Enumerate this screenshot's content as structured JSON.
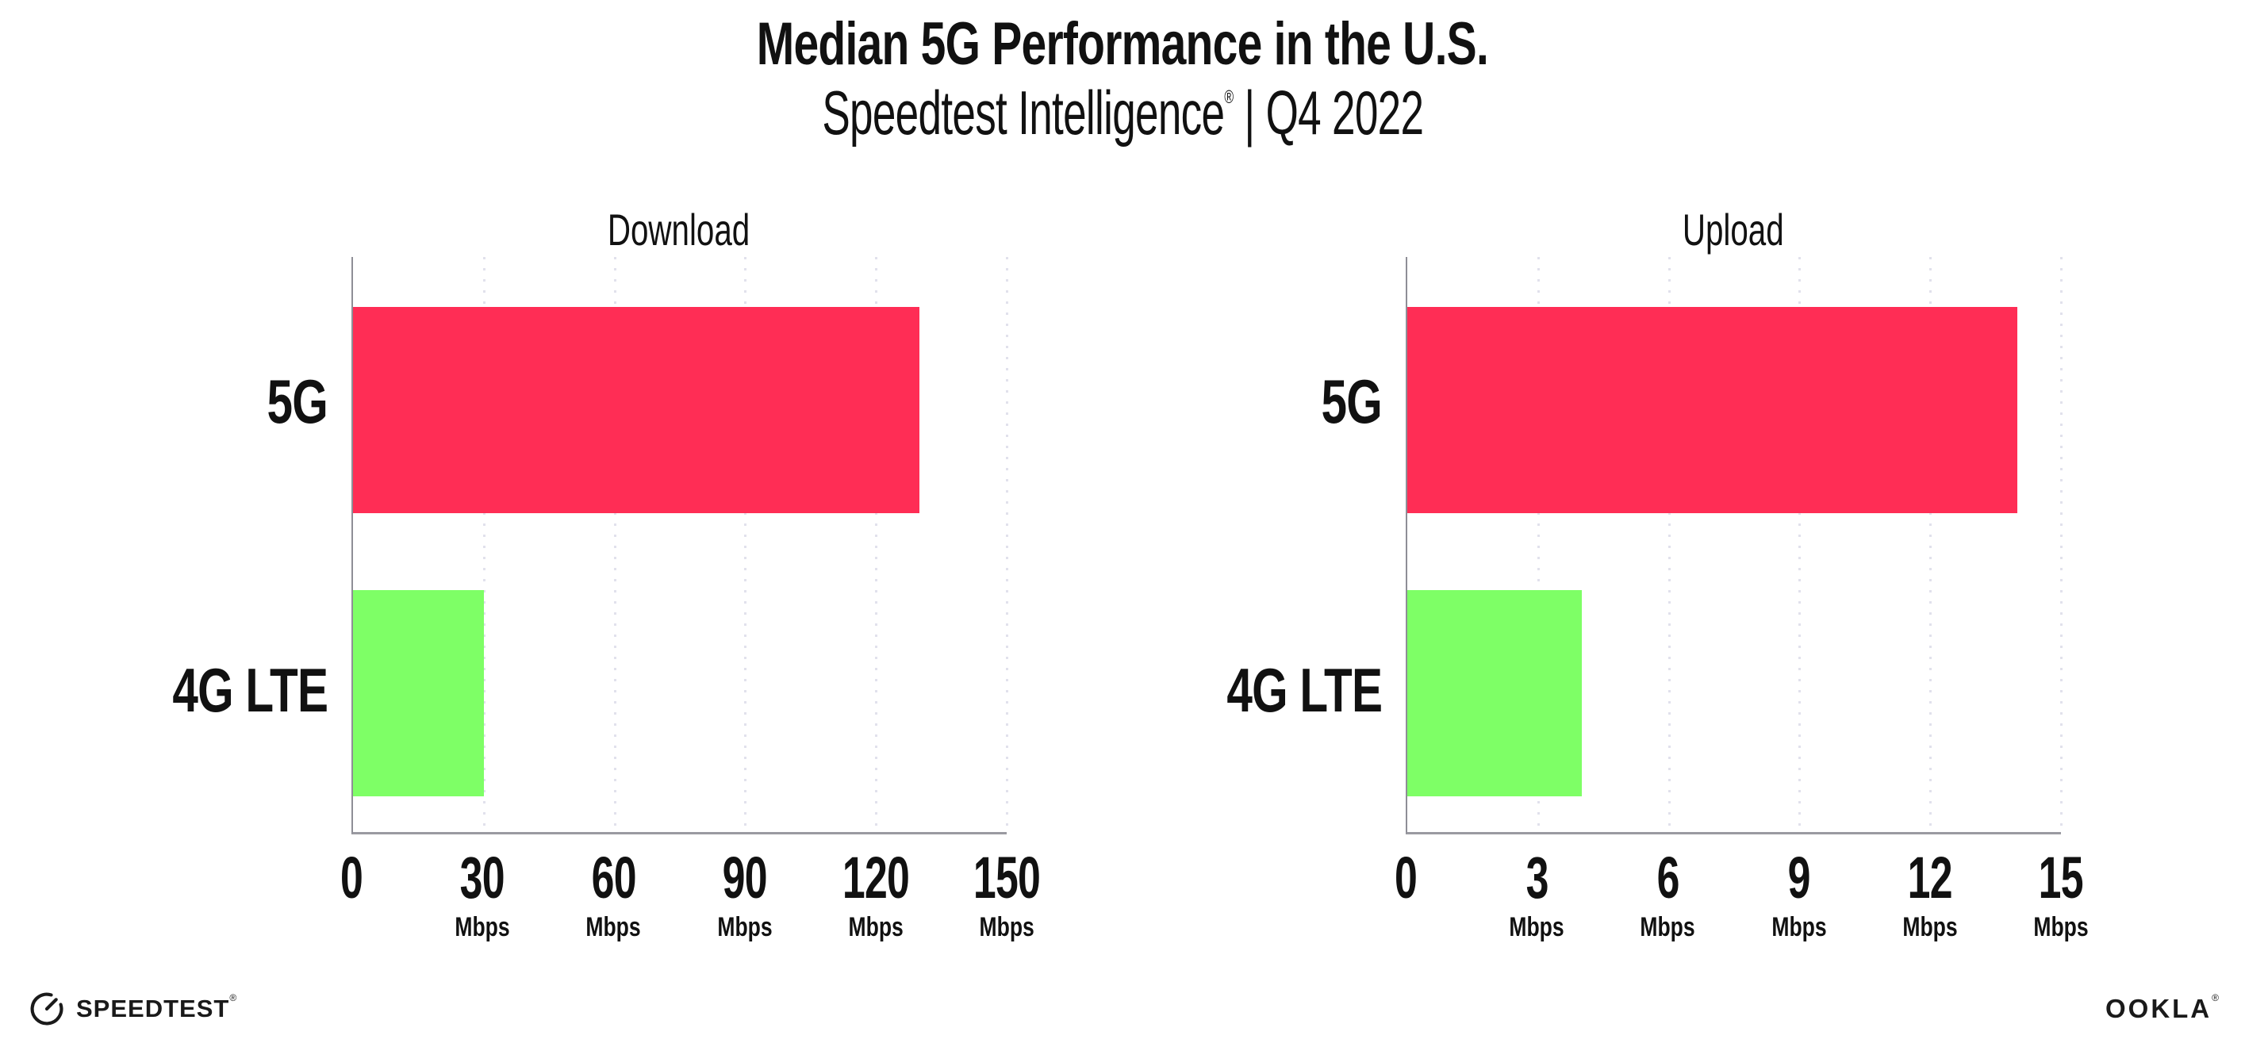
{
  "header": {
    "title": "Median 5G Performance in the U.S.",
    "subtitle_brand": "Speedtest Intelligence",
    "subtitle_reg": "®",
    "subtitle_rest": " | Q4 2022"
  },
  "chart_data": [
    {
      "type": "bar",
      "orientation": "horizontal",
      "title": "Download",
      "categories": [
        "5G",
        "4G LTE"
      ],
      "values": [
        130,
        30
      ],
      "unit": "Mbps",
      "xlim": [
        0,
        150
      ],
      "xticks": [
        0,
        30,
        60,
        90,
        120,
        150
      ],
      "tick_unit_label": "Mbps",
      "bar_colors": [
        "#FF2D55",
        "#7EFF66"
      ],
      "grid": "dotted-vertical",
      "legend": "none"
    },
    {
      "type": "bar",
      "orientation": "horizontal",
      "title": "Upload",
      "categories": [
        "5G",
        "4G LTE"
      ],
      "values": [
        14,
        4
      ],
      "unit": "Mbps",
      "xlim": [
        0,
        15
      ],
      "xticks": [
        0,
        3,
        6,
        9,
        12,
        15
      ],
      "tick_unit_label": "Mbps",
      "bar_colors": [
        "#FF2D55",
        "#7EFF66"
      ],
      "grid": "dotted-vertical",
      "legend": "none"
    }
  ],
  "footer": {
    "speedtest_label": "SPEEDTEST",
    "speedtest_reg": "®",
    "speedtest_icon": "gauge-icon",
    "ookla_label": "OOKLA",
    "ookla_reg": "®"
  },
  "colors": {
    "bar_5g": "#FF2D55",
    "bar_4g_lte": "#7EFF66",
    "axis_y": "#8e8e96",
    "axis_x": "#9a9aa1",
    "gridline": "#e1e1ec",
    "text": "#111111"
  }
}
